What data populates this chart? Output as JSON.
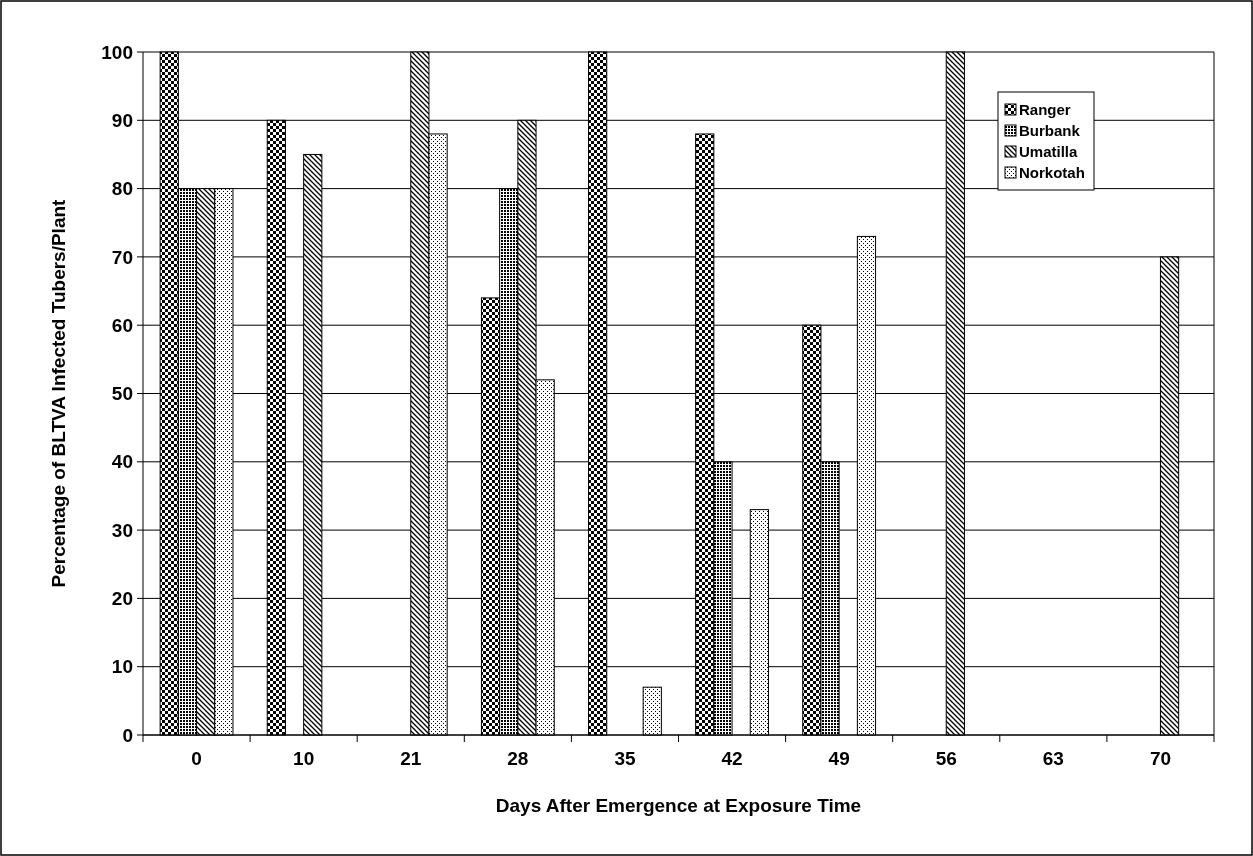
{
  "chart_data": {
    "type": "bar",
    "xlabel": "Days After Emergence at Exposure Time",
    "ylabel": "Percentage of BLTVA Infected Tubers/Plant",
    "categories": [
      "0",
      "10",
      "21",
      "28",
      "35",
      "42",
      "49",
      "56",
      "63",
      "70"
    ],
    "series": [
      {
        "name": "Ranger",
        "color": "#000000",
        "values": [
          100,
          90,
          0,
          64,
          100,
          88,
          60,
          0,
          0,
          0
        ]
      },
      {
        "name": "Burbank",
        "color": "#000000",
        "values": [
          80,
          0,
          0,
          80,
          0,
          40,
          40,
          0,
          0,
          0
        ]
      },
      {
        "name": "Umatilla",
        "color": "#000000",
        "values": [
          80,
          85,
          100,
          90,
          0,
          0,
          0,
          100,
          0,
          70
        ]
      },
      {
        "name": "Norkotah",
        "color": "#000000",
        "values": [
          80,
          0,
          88,
          52,
          7,
          33,
          73,
          0,
          0,
          0
        ]
      }
    ],
    "ylim": [
      0,
      100
    ],
    "yticks": [
      0,
      10,
      20,
      30,
      40,
      50,
      60,
      70,
      80,
      90,
      100
    ],
    "grid": "y",
    "legend": "top right"
  }
}
